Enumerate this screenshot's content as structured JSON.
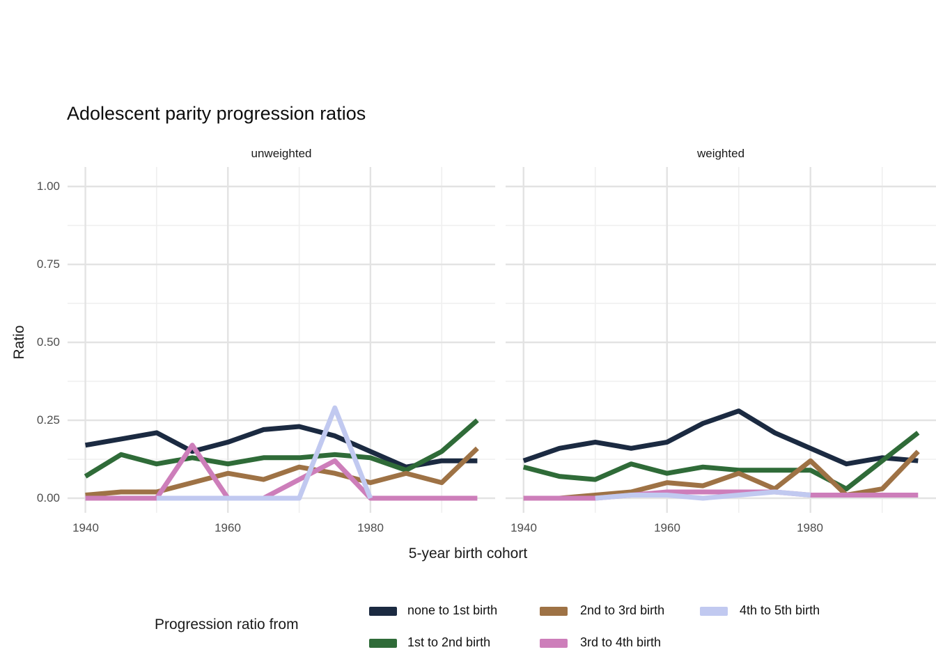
{
  "title": "Adolescent parity progression ratios",
  "axes": {
    "y_tick_labels": [
      "1.00",
      "0.75",
      "0.50",
      "0.25",
      "0.00"
    ],
    "x_tick_labels": [
      "1940",
      "1960",
      "1980"
    ]
  },
  "legend": {
    "title": "Progression ratio from",
    "items": [
      {
        "label": "none to 1st birth",
        "color": "#1b2a41"
      },
      {
        "label": "1st to 2nd birth",
        "color": "#2f6b38"
      },
      {
        "label": "2nd to 3rd birth",
        "color": "#9e7245"
      },
      {
        "label": "3rd to 4th birth",
        "color": "#cd7eba"
      },
      {
        "label": "4th to 5th birth",
        "color": "#c1c9f0"
      }
    ]
  },
  "chart_data": {
    "type": "line",
    "x": [
      1940,
      1945,
      1950,
      1955,
      1960,
      1965,
      1970,
      1975,
      1980,
      1985,
      1990,
      1995
    ],
    "xlabel": "5-year birth cohort",
    "ylabel": "Ratio",
    "ylim": [
      0,
      1
    ],
    "xlim": [
      1937.5,
      1997.5
    ],
    "x_major_ticks": [
      1940,
      1960,
      1980
    ],
    "x_minor_ticks": [
      1950,
      1970,
      1990
    ],
    "y_major_ticks": [
      0,
      0.25,
      0.5,
      0.75,
      1.0
    ],
    "y_minor_ticks": [
      0.125,
      0.375,
      0.625,
      0.875
    ],
    "grid": "both",
    "legend_position": "bottom",
    "x_tick_labels": [
      "1940",
      "1960",
      "1980"
    ],
    "facets": [
      {
        "label": "unweighted",
        "series": [
          {
            "name": "none to 1st birth",
            "color": "#1b2a41",
            "values": [
              0.17,
              0.19,
              0.21,
              0.15,
              0.18,
              0.22,
              0.23,
              0.2,
              0.15,
              0.1,
              0.12,
              0.12
            ]
          },
          {
            "name": "1st to 2nd birth",
            "color": "#2f6b38",
            "values": [
              0.07,
              0.14,
              0.11,
              0.13,
              0.11,
              0.13,
              0.13,
              0.14,
              0.13,
              0.09,
              0.15,
              0.25
            ]
          },
          {
            "name": "2nd to 3rd birth",
            "color": "#9e7245",
            "values": [
              0.01,
              0.02,
              0.02,
              0.05,
              0.08,
              0.06,
              0.1,
              0.08,
              0.05,
              0.08,
              0.05,
              0.16
            ]
          },
          {
            "name": "3rd to 4th birth",
            "color": "#cd7eba",
            "values": [
              0,
              0,
              0,
              0.17,
              0,
              0,
              0.06,
              0.12,
              0,
              0,
              0,
              0
            ]
          },
          {
            "name": "4th to 5th birth",
            "color": "#c1c9f0",
            "values": [
              null,
              null,
              0,
              0,
              0,
              0,
              0,
              0.29,
              0,
              null,
              null,
              null
            ]
          }
        ]
      },
      {
        "label": "weighted",
        "series": [
          {
            "name": "none to 1st birth",
            "color": "#1b2a41",
            "values": [
              0.12,
              0.16,
              0.18,
              0.16,
              0.18,
              0.24,
              0.28,
              0.21,
              0.16,
              0.11,
              0.13,
              0.12
            ]
          },
          {
            "name": "1st to 2nd birth",
            "color": "#2f6b38",
            "values": [
              0.1,
              0.07,
              0.06,
              0.11,
              0.08,
              0.1,
              0.09,
              0.09,
              0.09,
              0.03,
              0.12,
              0.21
            ]
          },
          {
            "name": "2nd to 3rd birth",
            "color": "#9e7245",
            "values": [
              0.0,
              0.0,
              0.01,
              0.02,
              0.05,
              0.04,
              0.08,
              0.03,
              0.12,
              0.01,
              0.03,
              0.15
            ]
          },
          {
            "name": "3rd to 4th birth",
            "color": "#cd7eba",
            "values": [
              0,
              0,
              0,
              0.01,
              0.02,
              0.02,
              0.02,
              0.02,
              0.01,
              0.01,
              0.01,
              0.01
            ]
          },
          {
            "name": "4th to 5th birth",
            "color": "#c1c9f0",
            "values": [
              null,
              null,
              0,
              0.01,
              0.01,
              0,
              0.01,
              0.02,
              0.01,
              null,
              null,
              null
            ]
          }
        ]
      }
    ]
  }
}
